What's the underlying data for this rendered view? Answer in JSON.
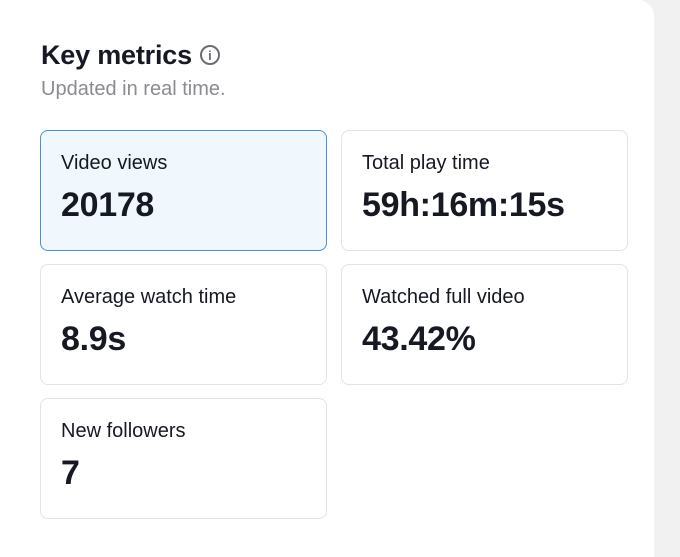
{
  "header": {
    "title": "Key metrics",
    "info_icon": "info-icon",
    "subtitle": "Updated in real time."
  },
  "metrics": [
    {
      "label": "Video views",
      "value": "20178",
      "selected": true
    },
    {
      "label": "Total play time",
      "value": "59h:16m:15s",
      "selected": false
    },
    {
      "label": "Average watch time",
      "value": "8.9s",
      "selected": false
    },
    {
      "label": "Watched full video",
      "value": "43.42%",
      "selected": false
    },
    {
      "label": "New followers",
      "value": "7",
      "selected": false
    }
  ],
  "colors": {
    "selected_border": "#4b90d0",
    "selected_background": "#f0f7fd",
    "text_primary": "#161823",
    "text_secondary": "#8a8b91"
  }
}
